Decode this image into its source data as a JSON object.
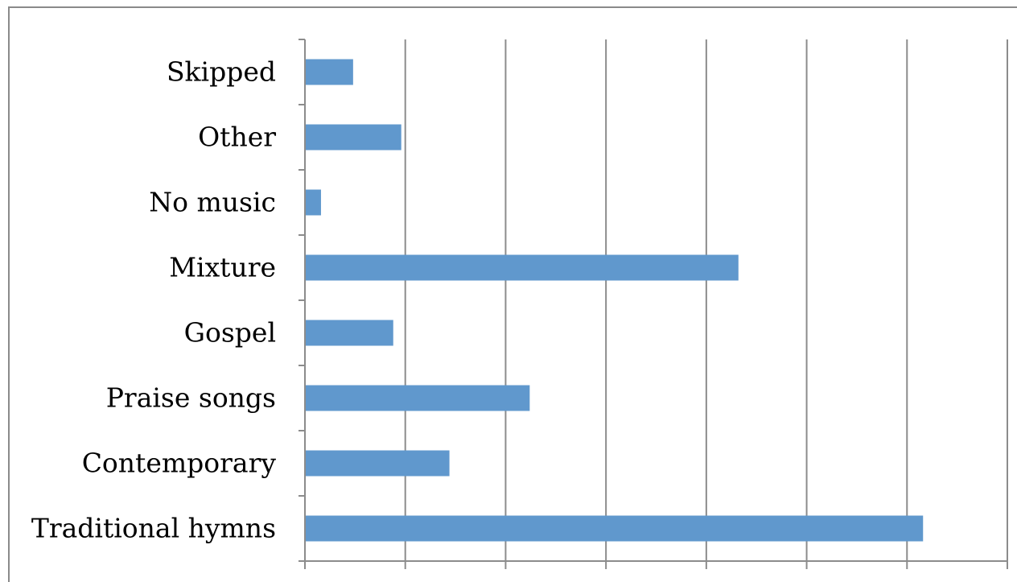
{
  "chart_data": {
    "type": "bar",
    "orientation": "horizontal",
    "categories": [
      "Skipped",
      "Other",
      "No music",
      "Mixture",
      "Gospel",
      "Praise songs",
      "Contemporary",
      "Traditional hymns"
    ],
    "values": [
      12,
      24,
      4,
      108,
      22,
      56,
      36,
      154
    ],
    "title": "",
    "xlabel": "",
    "ylabel": "",
    "xlim": [
      0,
      175
    ],
    "x_ticks": [
      0,
      25,
      50,
      75,
      100,
      125,
      150,
      175
    ],
    "x_tick_labels_visible": false,
    "grid": "vertical",
    "legend": "none",
    "colors": {
      "bar": "#6098cd",
      "grid": "#8c8c8c",
      "axis": "#8c8c8c",
      "text": "#000000"
    }
  }
}
